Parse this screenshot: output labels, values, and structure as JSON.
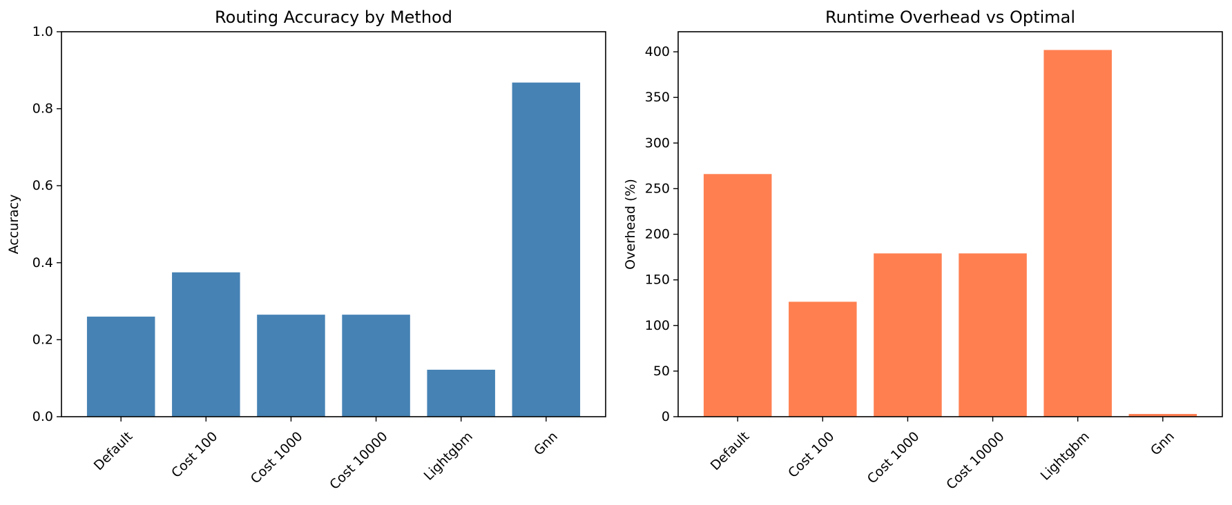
{
  "chart_data": [
    {
      "type": "bar",
      "title": "Routing Accuracy by Method",
      "xlabel": "",
      "ylabel": "Accuracy",
      "categories": [
        "Default",
        "Cost 100",
        "Cost 1000",
        "Cost 10000",
        "Lightgbm",
        "Gnn"
      ],
      "values": [
        0.26,
        0.375,
        0.265,
        0.265,
        0.122,
        0.868
      ],
      "ylim": [
        0,
        1.0
      ],
      "yticks": [
        0.0,
        0.2,
        0.4,
        0.6,
        0.8,
        1.0
      ],
      "ytick_labels": [
        "0.0",
        "0.2",
        "0.4",
        "0.6",
        "0.8",
        "1.0"
      ],
      "bar_color": "#4682b4",
      "grid": false,
      "legend": "none"
    },
    {
      "type": "bar",
      "title": "Runtime Overhead vs Optimal",
      "xlabel": "",
      "ylabel": "Overhead (%)",
      "categories": [
        "Default",
        "Cost 100",
        "Cost 1000",
        "Cost 10000",
        "Lightgbm",
        "Gnn"
      ],
      "values": [
        266,
        126,
        179,
        179,
        402,
        3
      ],
      "ylim": [
        0,
        422
      ],
      "yticks": [
        0,
        50,
        100,
        150,
        200,
        250,
        300,
        350,
        400
      ],
      "ytick_labels": [
        "0",
        "50",
        "100",
        "150",
        "200",
        "250",
        "300",
        "350",
        "400"
      ],
      "bar_color": "#ff7f50",
      "grid": false,
      "legend": "none"
    }
  ]
}
